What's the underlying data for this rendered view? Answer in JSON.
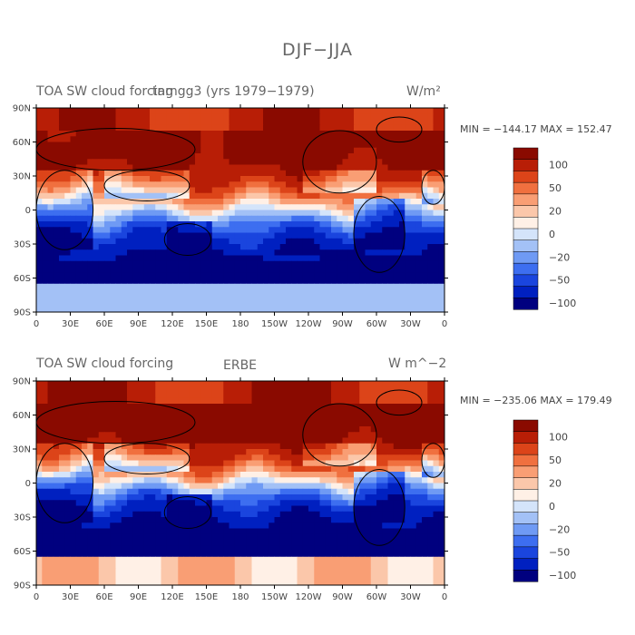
{
  "title": "DJF−JJA",
  "chart_data": [
    {
      "type": "heatmap",
      "title_left": "TOA SW cloud forcing",
      "title_center": "tamgg3 (yrs 1979−1979)",
      "units": "W/m²",
      "stats": "MIN = −144.17  MAX = 152.47",
      "min": -144.17,
      "max": 152.47,
      "y_ticks": [
        "90N",
        "60N",
        "30N",
        "0",
        "30S",
        "60S",
        "90S"
      ],
      "x_ticks": [
        "0",
        "30E",
        "60E",
        "90E",
        "120E",
        "150E",
        "180",
        "150W",
        "120W",
        "90W",
        "60W",
        "30W",
        "0"
      ],
      "colorbar_labels": [
        "100",
        "50",
        "20",
        "0",
        "−20",
        "−50",
        "−100"
      ],
      "lat_range": [
        -90,
        90
      ],
      "lon_range": [
        0,
        360
      ]
    },
    {
      "type": "heatmap",
      "title_left": "TOA SW cloud forcing",
      "title_center": "ERBE",
      "units": "W m^−2",
      "stats": "MIN = −235.06  MAX = 179.49",
      "min": -235.06,
      "max": 179.49,
      "y_ticks": [
        "90N",
        "60N",
        "30N",
        "0",
        "30S",
        "60S",
        "90S"
      ],
      "x_ticks": [
        "0",
        "30E",
        "60E",
        "90E",
        "120E",
        "150E",
        "180",
        "150W",
        "120W",
        "90W",
        "60W",
        "30W",
        "0"
      ],
      "colorbar_labels": [
        "100",
        "50",
        "20",
        "0",
        "−20",
        "−50",
        "−100"
      ],
      "lat_range": [
        -90,
        90
      ],
      "lon_range": [
        0,
        360
      ]
    }
  ],
  "colors": {
    "scale": [
      "#00007f",
      "#0020c0",
      "#1a45de",
      "#3d6ef0",
      "#6f9af4",
      "#a3c1f6",
      "#d4e4fa",
      "#fff0e6",
      "#fbc7aa",
      "#f99e74",
      "#f0703f",
      "#dc4419",
      "#b81e06",
      "#8a0a00"
    ]
  }
}
